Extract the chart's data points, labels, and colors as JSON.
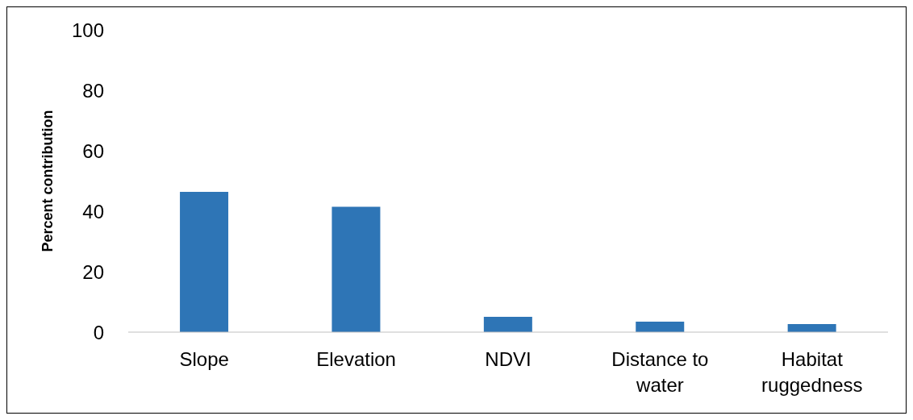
{
  "chart_data": {
    "type": "bar",
    "ylabel": "Percent contribution",
    "categories": [
      "Slope",
      "Elevation",
      "NDVI",
      "Distance to water",
      "Habitat ruggedness"
    ],
    "values": [
      46.4,
      41.5,
      5.1,
      3.5,
      2.7
    ],
    "color": "#2e75b6",
    "ylim": [
      0,
      100
    ],
    "yticks": [
      0,
      20,
      40,
      60,
      80,
      100
    ],
    "grid": false,
    "legend": false
  }
}
